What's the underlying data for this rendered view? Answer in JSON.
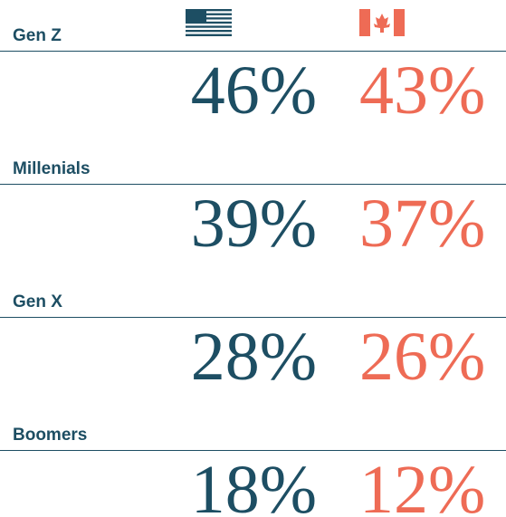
{
  "rows": [
    {
      "label": "Gen Z",
      "us": "46%",
      "canada": "43%"
    },
    {
      "label": "Millenials",
      "us": "39%",
      "canada": "37%"
    },
    {
      "label": "Gen X",
      "us": "28%",
      "canada": "26%"
    },
    {
      "label": "Boomers",
      "us": "18%",
      "canada": "12%"
    }
  ]
}
